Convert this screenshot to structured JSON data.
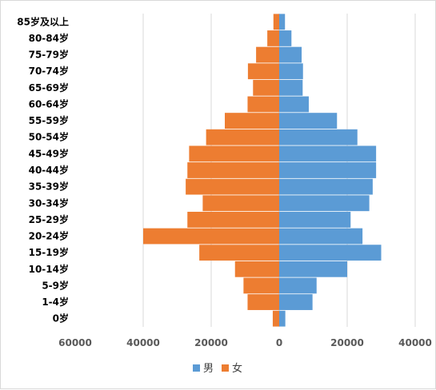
{
  "chart_data": {
    "type": "bar",
    "orientation": "horizontal",
    "layout": "population-pyramid",
    "categories": [
      "0岁",
      "1-4岁",
      "5-9岁",
      "10-14岁",
      "15-19岁",
      "20-24岁",
      "25-29岁",
      "30-34岁",
      "35-39岁",
      "40-44岁",
      "45-49岁",
      "50-54岁",
      "55-59岁",
      "60-64岁",
      "65-69岁",
      "70-74岁",
      "75-79岁",
      "80-84岁",
      "85岁及以上"
    ],
    "series": [
      {
        "name": "男",
        "color": "#5b9bd5",
        "values": [
          1800,
          9800,
          11000,
          20000,
          30000,
          24500,
          21000,
          26500,
          27500,
          28500,
          28500,
          23000,
          17000,
          8700,
          6900,
          7000,
          6600,
          3600,
          1700
        ]
      },
      {
        "name": "女",
        "color": "#ed7d31",
        "values": [
          -1900,
          -9300,
          -10500,
          -13000,
          -23500,
          -40000,
          -27000,
          -22500,
          -27500,
          -27000,
          -26500,
          -21500,
          -16000,
          -9300,
          -7700,
          -9200,
          -6800,
          -3500,
          -1700
        ]
      }
    ],
    "x_ticks": [
      {
        "value": -60000,
        "label": "60000"
      },
      {
        "value": -40000,
        "label": "40000"
      },
      {
        "value": -20000,
        "label": "20000"
      },
      {
        "value": 0,
        "label": "0"
      },
      {
        "value": 20000,
        "label": "20000"
      },
      {
        "value": 40000,
        "label": "40000"
      }
    ],
    "xlim": [
      -60000,
      40000
    ],
    "grid": true,
    "legend": "bottom-center"
  }
}
